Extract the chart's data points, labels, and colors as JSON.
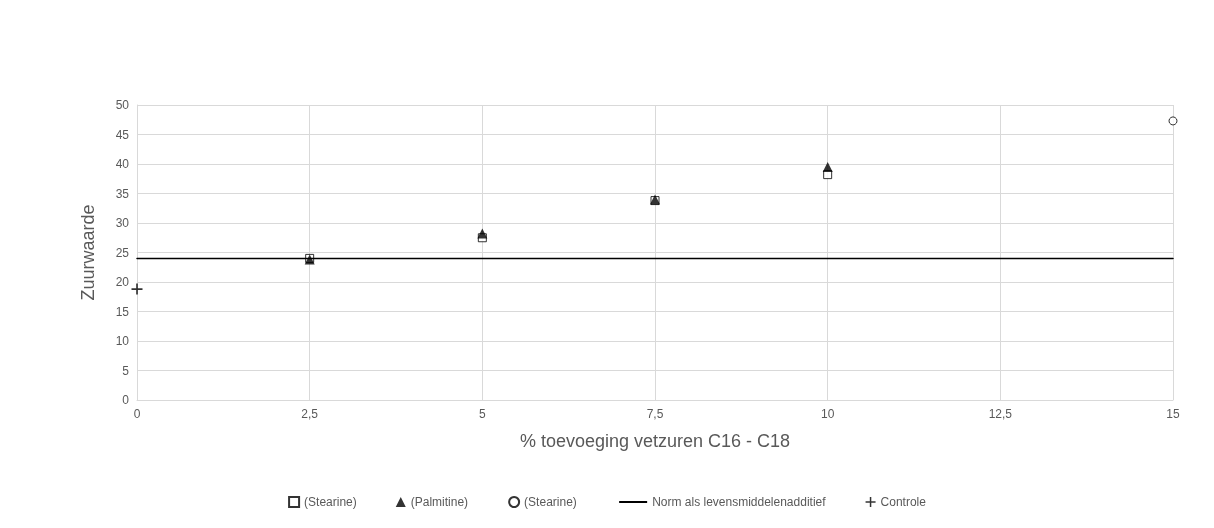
{
  "chart_data": {
    "type": "scatter",
    "xlabel": "% toevoeging vetzuren C16 - C18",
    "ylabel": "Zuurwaarde",
    "xlim": [
      0,
      15
    ],
    "xticks": [
      0,
      {
        "value": 2.5,
        "label": "2,5"
      },
      5,
      {
        "value": 7.5,
        "label": "7,5"
      },
      10,
      {
        "value": 12.5,
        "label": "12,5"
      },
      15
    ],
    "ylim": [
      0,
      50
    ],
    "yticks": [
      0,
      5,
      10,
      15,
      20,
      25,
      30,
      35,
      40,
      45,
      50
    ],
    "grid": true,
    "legend": "bottom",
    "series": [
      {
        "name": "(Stearine)",
        "marker": "square",
        "color": "#000000",
        "x": [
          2.5,
          5,
          7.5,
          10
        ],
        "values": [
          24,
          27.5,
          33.8,
          38.2
        ]
      },
      {
        "name": "(Palmitine)",
        "marker": "triangle",
        "color": "#000000",
        "x": [
          2.5,
          5,
          7.5,
          10
        ],
        "values": [
          23.8,
          28.2,
          34,
          39.5
        ]
      },
      {
        "name": "(Stearine) ",
        "marker": "circle",
        "color": "#000000",
        "x": [
          15
        ],
        "values": [
          47.3
        ]
      },
      {
        "name": "Norm als levensmiddelenadditief",
        "type": "line",
        "marker": "none",
        "line_style": "solid",
        "color": "#000000",
        "x": [
          0,
          15
        ],
        "values": [
          24,
          24
        ]
      },
      {
        "name": "Controle",
        "marker": "cross",
        "color": "#000000",
        "x": [
          0
        ],
        "values": [
          18.8
        ]
      }
    ]
  }
}
